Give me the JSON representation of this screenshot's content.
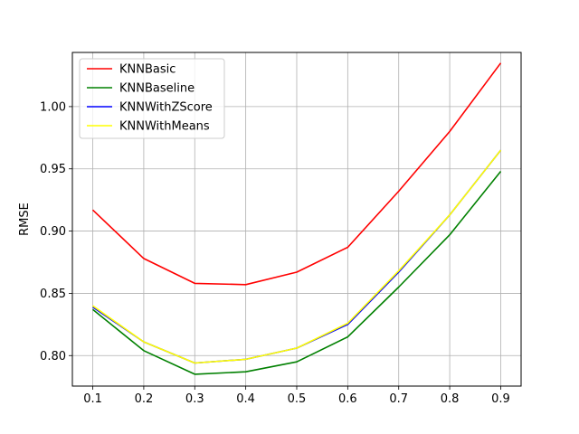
{
  "chart_data": {
    "type": "line",
    "title": "",
    "xlabel": "",
    "ylabel": "RMSE",
    "x": [
      0.1,
      0.2,
      0.3,
      0.4,
      0.5,
      0.6,
      0.7,
      0.8,
      0.9
    ],
    "x_tick_labels": [
      "0.1",
      "0.2",
      "0.3",
      "0.4",
      "0.5",
      "0.6",
      "0.7",
      "0.8",
      "0.9"
    ],
    "y_ticks": [
      0.8,
      0.85,
      0.9,
      0.95,
      1.0
    ],
    "y_tick_labels": [
      "0.80",
      "0.85",
      "0.90",
      "0.95",
      "1.00"
    ],
    "xlim": [
      0.06,
      0.94
    ],
    "ylim": [
      0.7755,
      1.0435
    ],
    "grid": true,
    "legend_position": "top-left",
    "series": [
      {
        "name": "KNNBasic",
        "color": "#ff0000",
        "values": [
          0.917,
          0.878,
          0.858,
          0.857,
          0.867,
          0.887,
          0.932,
          0.98,
          1.035
        ]
      },
      {
        "name": "KNNBaseline",
        "color": "#008000",
        "values": [
          0.837,
          0.804,
          0.785,
          0.787,
          0.795,
          0.815,
          0.855,
          0.897,
          0.948
        ]
      },
      {
        "name": "KNNWithZScore",
        "color": "#0000ff",
        "values": [
          0.839,
          0.811,
          0.794,
          0.797,
          0.806,
          0.825,
          0.867,
          0.913,
          0.965
        ]
      },
      {
        "name": "KNNWithMeans",
        "color": "#ffff00",
        "values": [
          0.84,
          0.811,
          0.794,
          0.797,
          0.806,
          0.826,
          0.868,
          0.913,
          0.965
        ]
      }
    ]
  }
}
